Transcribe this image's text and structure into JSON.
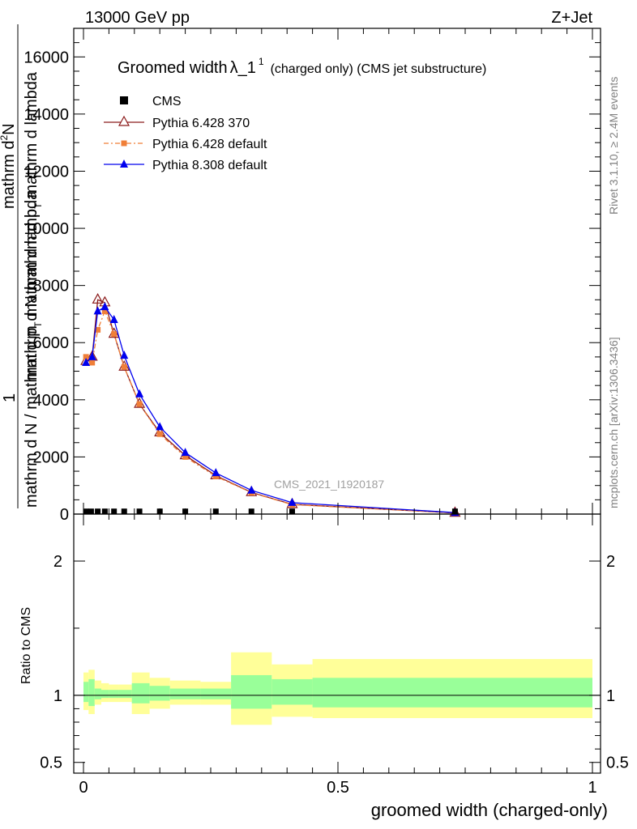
{
  "header": {
    "left": "13000 GeV pp",
    "right": "Z+Jet"
  },
  "title": {
    "main": "Groomed width",
    "lambda": "λ_1",
    "sup": "1",
    "sub": "(charged only) (CMS jet substructure)"
  },
  "side_labels": {
    "rivet": "Rivet 3.1.10, ≥ 2.4M events",
    "mcplots": "mcplots.cern.ch [arXiv:1306.3436]"
  },
  "watermark": "CMS_2021_I1920187",
  "ylabel_top": {
    "one": "1",
    "num1": "mathrm d",
    "num1_sup": "2",
    "num2": "N",
    "den": "mathrm d N / mathrm d p",
    "den_sub": "T",
    "den2": "mathrm d lambda",
    "num_a": "mathrm d",
    "num_b": "N",
    "num_c": "mathrm d p",
    "num_c_sub": "T",
    "num_d": "mathrm d lambda"
  },
  "ylabel_bottom": "Ratio to CMS",
  "xlabel": "groomed width (charged-only)",
  "legend": [
    {
      "label": "CMS",
      "color": "#000000",
      "marker": "square"
    },
    {
      "label": "Pythia 6.428 370",
      "color": "#8b1a1a",
      "marker": "open-triangle"
    },
    {
      "label": "Pythia 6.428 default",
      "color": "#f07f38",
      "marker": "small-square",
      "dashed": true
    },
    {
      "label": "Pythia 8.308 default",
      "color": "#0000ee",
      "marker": "triangle"
    }
  ],
  "chart_data": {
    "type": "line",
    "main_panel": {
      "xlim": [
        0,
        1
      ],
      "ylim": [
        0,
        17000
      ],
      "yticks": [
        0,
        2000,
        4000,
        6000,
        8000,
        10000,
        12000,
        14000,
        16000
      ],
      "ytick_labels": [
        "0",
        "2000",
        "4000",
        "6000",
        "8000",
        "10000",
        "12000",
        "14000",
        "16000"
      ],
      "cms": {
        "name": "CMS",
        "x": [
          0.005,
          0.015,
          0.028,
          0.042,
          0.06,
          0.08,
          0.11,
          0.15,
          0.2,
          0.26,
          0.33,
          0.41,
          0.73
        ],
        "y": [
          8,
          8,
          8,
          8,
          8,
          8,
          8,
          8,
          8,
          8,
          8,
          8,
          8
        ]
      },
      "series": [
        {
          "name": "Pythia 6.428 370",
          "color": "#8b1a1a",
          "x": [
            0.005,
            0.017,
            0.028,
            0.042,
            0.06,
            0.08,
            0.11,
            0.15,
            0.2,
            0.26,
            0.33,
            0.41,
            0.73
          ],
          "y": [
            5350,
            5500,
            7500,
            7400,
            6300,
            5150,
            3850,
            2850,
            2050,
            1350,
            760,
            340,
            40
          ]
        },
        {
          "name": "Pythia 6.428 default",
          "color": "#f07f38",
          "x": [
            0.005,
            0.017,
            0.028,
            0.042,
            0.06,
            0.08,
            0.11,
            0.15,
            0.2,
            0.26,
            0.33,
            0.41,
            0.73
          ],
          "y": [
            5500,
            5300,
            6450,
            7100,
            6300,
            5150,
            3850,
            2800,
            2000,
            1320,
            750,
            330,
            40
          ]
        },
        {
          "name": "Pythia 8.308 default",
          "color": "#0000ee",
          "x": [
            0.005,
            0.017,
            0.028,
            0.042,
            0.06,
            0.08,
            0.11,
            0.15,
            0.2,
            0.26,
            0.33,
            0.41,
            0.73
          ],
          "y": [
            5300,
            5500,
            7100,
            7250,
            6800,
            5550,
            4200,
            3050,
            2150,
            1440,
            830,
            400,
            50
          ]
        }
      ]
    },
    "ratio_panel": {
      "ylim": [
        0.42,
        2.35
      ],
      "yticks": [
        0.5,
        1,
        2
      ],
      "ytick_labels": [
        "0.5",
        "1",
        "2"
      ],
      "xticks": [
        0,
        0.5,
        1
      ],
      "xtick_labels": [
        "0",
        "0.5",
        "1"
      ],
      "bins": [
        {
          "lo": 0.0,
          "hi": 0.01,
          "stat_lo": 0.95,
          "stat_hi": 1.1,
          "tot_lo": 0.89,
          "tot_hi": 1.17
        },
        {
          "lo": 0.01,
          "hi": 0.022,
          "stat_lo": 0.92,
          "stat_hi": 1.12,
          "tot_lo": 0.86,
          "tot_hi": 1.19
        },
        {
          "lo": 0.022,
          "hi": 0.035,
          "stat_lo": 0.97,
          "stat_hi": 1.05,
          "tot_lo": 0.93,
          "tot_hi": 1.11
        },
        {
          "lo": 0.035,
          "hi": 0.05,
          "stat_lo": 0.98,
          "stat_hi": 1.04,
          "tot_lo": 0.95,
          "tot_hi": 1.09
        },
        {
          "lo": 0.05,
          "hi": 0.07,
          "stat_lo": 0.98,
          "stat_hi": 1.04,
          "tot_lo": 0.95,
          "tot_hi": 1.08
        },
        {
          "lo": 0.07,
          "hi": 0.095,
          "stat_lo": 0.98,
          "stat_hi": 1.04,
          "tot_lo": 0.95,
          "tot_hi": 1.08
        },
        {
          "lo": 0.095,
          "hi": 0.13,
          "stat_lo": 0.94,
          "stat_hi": 1.09,
          "tot_lo": 0.86,
          "tot_hi": 1.17
        },
        {
          "lo": 0.13,
          "hi": 0.17,
          "stat_lo": 0.96,
          "stat_hi": 1.07,
          "tot_lo": 0.9,
          "tot_hi": 1.13
        },
        {
          "lo": 0.17,
          "hi": 0.23,
          "stat_lo": 0.97,
          "stat_hi": 1.05,
          "tot_lo": 0.93,
          "tot_hi": 1.11
        },
        {
          "lo": 0.23,
          "hi": 0.29,
          "stat_lo": 0.97,
          "stat_hi": 1.05,
          "tot_lo": 0.93,
          "tot_hi": 1.1
        },
        {
          "lo": 0.29,
          "hi": 0.37,
          "stat_lo": 0.9,
          "stat_hi": 1.15,
          "tot_lo": 0.78,
          "tot_hi": 1.32
        },
        {
          "lo": 0.37,
          "hi": 0.45,
          "stat_lo": 0.93,
          "stat_hi": 1.12,
          "tot_lo": 0.84,
          "tot_hi": 1.23
        },
        {
          "lo": 0.45,
          "hi": 1.0,
          "stat_lo": 0.91,
          "stat_hi": 1.13,
          "tot_lo": 0.83,
          "tot_hi": 1.27
        }
      ],
      "stat_color": "#99ff99",
      "tot_color": "#ffff99"
    }
  }
}
